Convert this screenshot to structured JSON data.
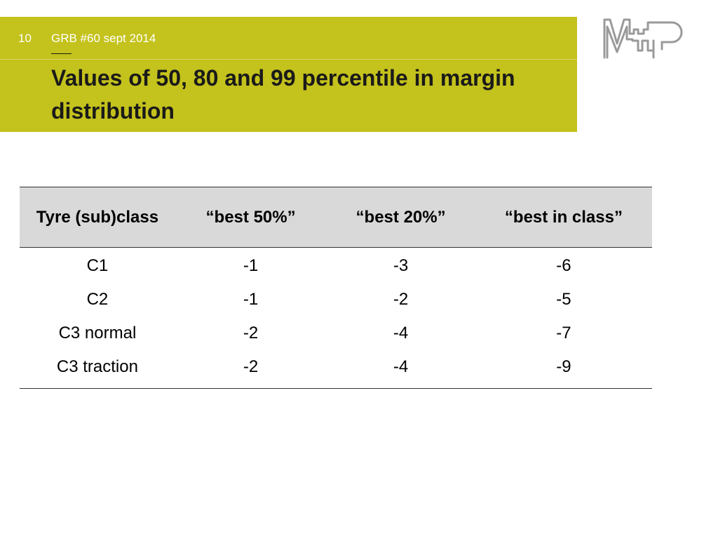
{
  "header": {
    "slide_number": "10",
    "meeting_ref": "GRB #60 sept 2014",
    "title": "Values of 50, 80 and 99 percentile in margin distribution",
    "band_color": "#c4c21c"
  },
  "logo": {
    "icon": "map-logo-icon",
    "color": "#9a9a9a"
  },
  "table": {
    "headers": [
      "Tyre (sub)class",
      "“best 50%”",
      "“best 20%”",
      "“best in class”"
    ],
    "rows": [
      [
        "C1",
        "-1",
        "-3",
        "-6"
      ],
      [
        "C2",
        "-1",
        "-2",
        "-5"
      ],
      [
        "C3 normal",
        "-2",
        "-4",
        "-7"
      ],
      [
        "C3 traction",
        "-2",
        "-4",
        "-9"
      ]
    ],
    "header_bg": "#d9d9d9"
  }
}
